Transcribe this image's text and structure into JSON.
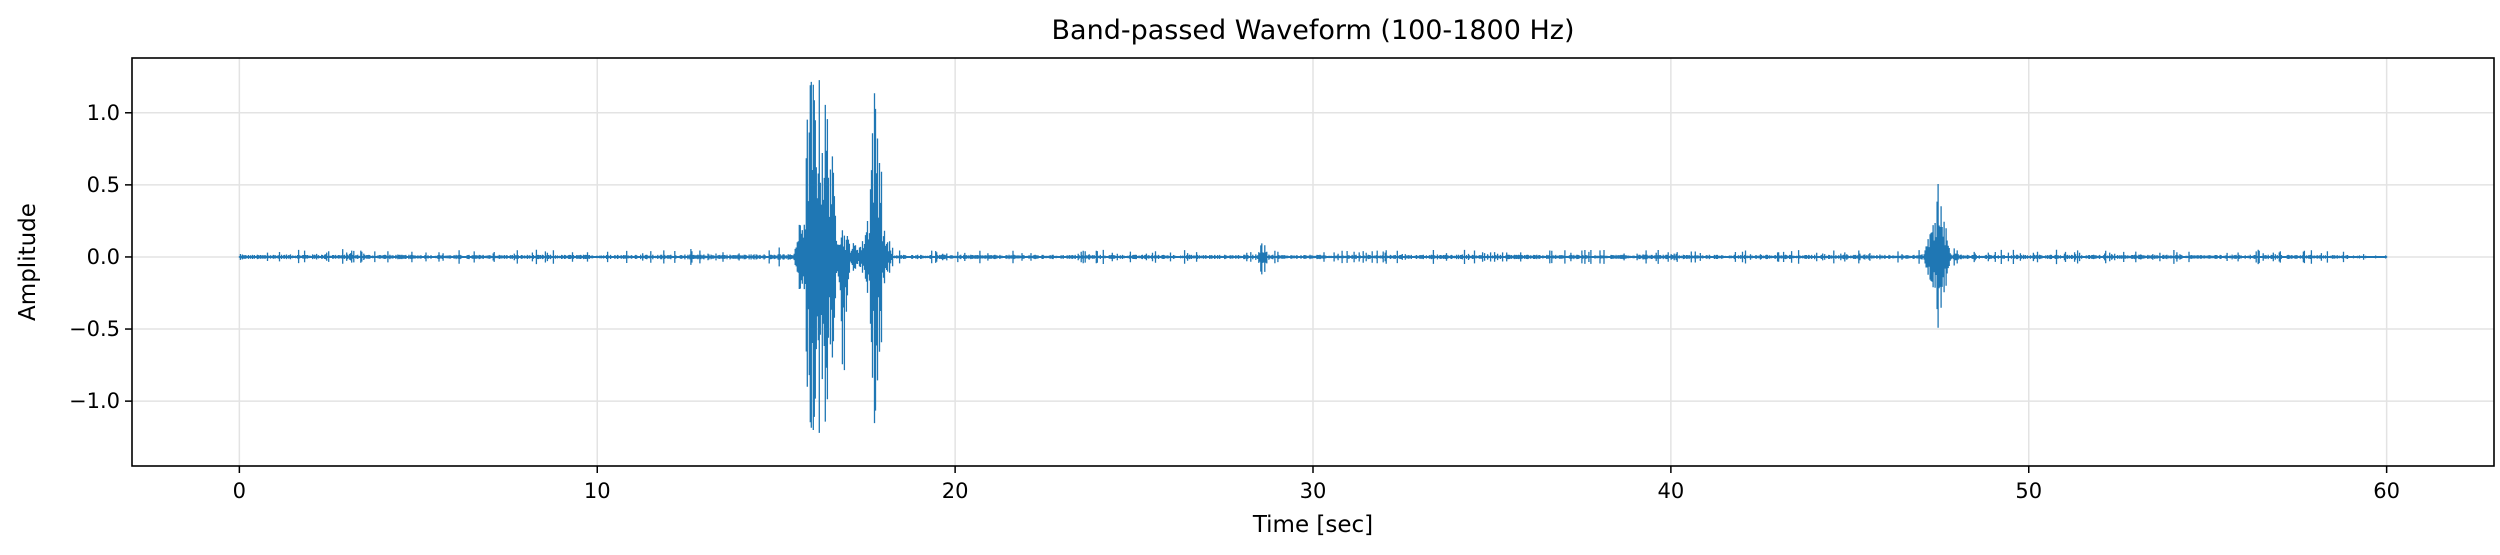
{
  "chart_data": {
    "type": "line",
    "title": "Band-passed Waveform (100-1800 Hz)",
    "xlabel": "Time [sec]",
    "ylabel": "Amplitude",
    "xlim": [
      -3,
      63
    ],
    "ylim": [
      -1.45,
      1.38
    ],
    "x_ticks": [
      0,
      10,
      20,
      30,
      40,
      50,
      60
    ],
    "y_ticks": [
      1.0,
      0.5,
      0.0,
      -0.5,
      -1.0
    ],
    "x_tick_labels": [
      "0",
      "10",
      "20",
      "30",
      "40",
      "50",
      "60"
    ],
    "y_tick_labels": [
      "1.0",
      "0.5",
      "0.0",
      "−0.5",
      "−1.0"
    ],
    "grid": true,
    "line_color": "#1f77b4",
    "series": [
      {
        "x": [
          0.0,
          0.1,
          2.0,
          5.0,
          10.0,
          14.0,
          15.5,
          15.8,
          15.9,
          16.0,
          16.1,
          16.2,
          16.3,
          16.4,
          16.5,
          16.6,
          16.7,
          16.9,
          17.0,
          17.1,
          17.4,
          17.6,
          17.7,
          17.8,
          17.9,
          18.0,
          18.3,
          20.0,
          25.0,
          28.3,
          28.6,
          28.9,
          30.0,
          35.0,
          40.0,
          45.0,
          47.0,
          47.3,
          47.4,
          47.5,
          47.6,
          47.8,
          48.2,
          50.0,
          55.0,
          58.0,
          60.0
        ],
        "y_min": [
          -0.02,
          -0.05,
          -0.05,
          -0.05,
          -0.05,
          -0.06,
          -0.07,
          -0.4,
          -1.2,
          -1.28,
          -1.3,
          -1.25,
          -1.32,
          -1.2,
          -1.0,
          -0.6,
          -0.3,
          -1.1,
          -0.2,
          -0.1,
          -0.1,
          -0.4,
          -1.2,
          -1.27,
          -1.0,
          -0.2,
          -0.05,
          -0.05,
          -0.05,
          -0.05,
          -0.13,
          -0.05,
          -0.05,
          -0.05,
          -0.05,
          -0.05,
          -0.05,
          -0.2,
          -0.45,
          -0.55,
          -0.3,
          -0.1,
          -0.05,
          -0.05,
          -0.05,
          -0.05,
          -0.02
        ],
        "y_max": [
          0.02,
          0.05,
          0.06,
          0.05,
          0.05,
          0.06,
          0.07,
          0.4,
          1.28,
          1.3,
          1.25,
          1.27,
          1.1,
          1.15,
          1.0,
          0.6,
          0.3,
          0.2,
          0.15,
          0.1,
          0.1,
          0.4,
          1.23,
          1.2,
          1.0,
          0.2,
          0.05,
          0.05,
          0.05,
          0.05,
          0.1,
          0.05,
          0.05,
          0.05,
          0.05,
          0.05,
          0.05,
          0.2,
          0.5,
          0.55,
          0.3,
          0.1,
          0.05,
          0.05,
          0.05,
          0.05,
          0.02
        ]
      }
    ]
  }
}
